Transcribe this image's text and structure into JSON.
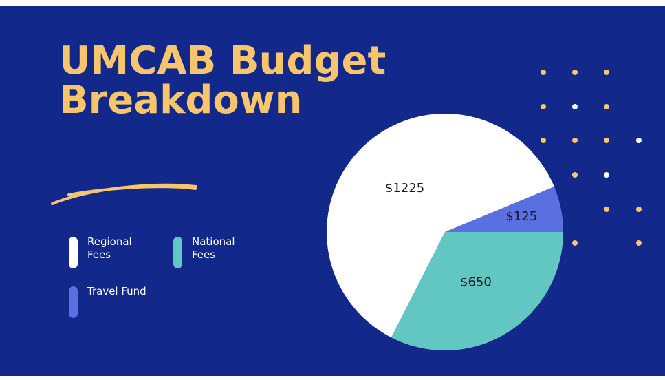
{
  "slide": {
    "title_line1": "UMCAB Budget",
    "title_line2": "Breakdown",
    "colors": {
      "background": "#12288a",
      "title": "#f7c56b",
      "dot_gold": "#f7c56b",
      "dot_white": "#ffffff"
    }
  },
  "legend": [
    {
      "label": "Regional Fees",
      "color": "#ffffff"
    },
    {
      "label": "National Fees",
      "color": "#62c6c2"
    },
    {
      "label": "Travel Fund",
      "color": "#5a6fe0"
    }
  ],
  "chart_data": {
    "type": "pie",
    "slices": [
      {
        "name": "National Fees",
        "value": 650,
        "label": "$650",
        "color": "#62c6c2"
      },
      {
        "name": "Regional Fees",
        "value": 1225,
        "label": "$1225",
        "color": "#ffffff"
      },
      {
        "name": "Travel Fund",
        "value": 125,
        "label": "$125",
        "color": "#5a6fe0"
      }
    ],
    "start": "right (3 o'clock)",
    "direction": "clockwise"
  }
}
